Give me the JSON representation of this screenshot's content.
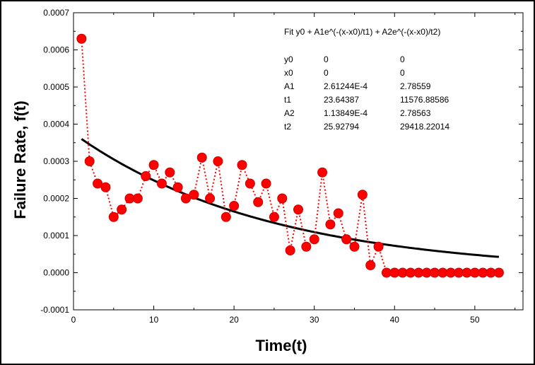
{
  "chart_data": {
    "type": "scatter",
    "xlabel": "Time(t)",
    "ylabel": "Failure Rate, f(t)",
    "xlim": [
      0,
      56
    ],
    "ylim": [
      -0.0001,
      0.0007
    ],
    "x_ticks": [
      0,
      10,
      20,
      30,
      40,
      50
    ],
    "y_ticks": [
      -0.0001,
      0.0,
      0.0001,
      0.0002,
      0.0003,
      0.0004,
      0.0005,
      0.0006,
      0.0007
    ],
    "x_tick_labels": [
      "0",
      "10",
      "20",
      "30",
      "40",
      "50"
    ],
    "y_tick_labels": [
      "-0.0001",
      "0.0000",
      "0.0001",
      "0.0002",
      "0.0003",
      "0.0004",
      "0.0005",
      "0.0006",
      "0.0007"
    ],
    "grid": false,
    "series": [
      {
        "style": "markers with dotted line",
        "color": "#ff0000",
        "x": [
          1,
          2,
          3,
          4,
          5,
          6,
          7,
          8,
          9,
          10,
          11,
          12,
          13,
          14,
          15,
          16,
          17,
          18,
          19,
          20,
          21,
          22,
          23,
          24,
          25,
          26,
          27,
          28,
          29,
          30,
          31,
          32,
          33,
          34,
          35,
          36,
          37,
          38,
          39,
          40,
          41,
          42,
          43,
          44,
          45,
          46,
          47,
          48,
          49,
          50,
          51,
          52,
          53
        ],
        "y": [
          0.00063,
          0.0003,
          0.00024,
          0.00023,
          0.00015,
          0.00017,
          0.0002,
          0.0002,
          0.00026,
          0.00029,
          0.00024,
          0.00027,
          0.00023,
          0.0002,
          0.00021,
          0.00031,
          0.0002,
          0.0003,
          0.00015,
          0.00018,
          0.00029,
          0.00024,
          0.00019,
          0.00024,
          0.00015,
          0.0002,
          6e-05,
          0.00017,
          7e-05,
          9e-05,
          0.00027,
          0.00013,
          0.00016,
          9e-05,
          7e-05,
          0.00021,
          2e-05,
          7e-05,
          0,
          0,
          0,
          0,
          0,
          0,
          0,
          0,
          0,
          0,
          0,
          0,
          0,
          0,
          0
        ]
      },
      {
        "style": "fit curve",
        "color": "#000000",
        "x_range": [
          1,
          53
        ],
        "params": {
          "y0": 0,
          "x0": 0,
          "A1": 0.000261244,
          "t1": 23.64387,
          "A2": 0.000113849,
          "t2": 25.92794
        }
      }
    ],
    "fit_box": {
      "title": "Fit y0 + A1e^(-(x-x0)/t1) + A2e^(-(x-x0)/t2)",
      "rows": [
        [
          "y0",
          "0",
          "0"
        ],
        [
          "x0",
          "0",
          "0"
        ],
        [
          "A1",
          "2.61244E-4",
          "2.78559"
        ],
        [
          "t1",
          "23.64387",
          "11576.88586"
        ],
        [
          "A2",
          "1.13849E-4",
          "2.78563"
        ],
        [
          "t2",
          "25.92794",
          "29418.22014"
        ]
      ]
    }
  }
}
